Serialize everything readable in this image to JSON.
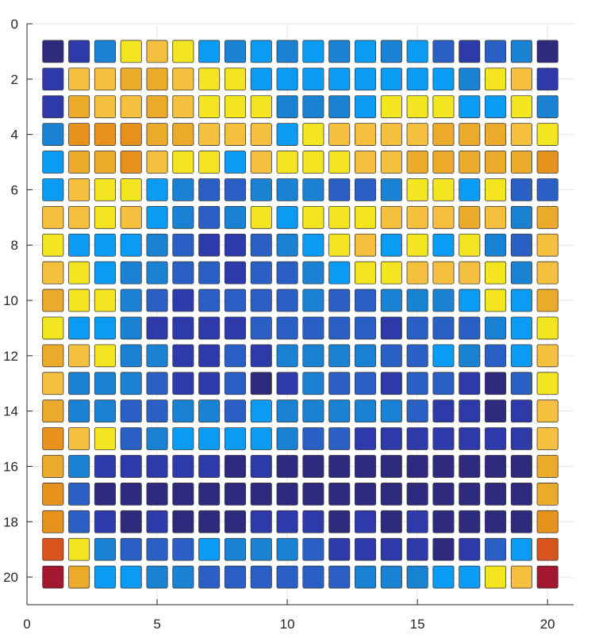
{
  "chart_data": {
    "type": "heatmap",
    "title": "",
    "xlabel": "",
    "ylabel": "",
    "xlim": [
      0,
      21
    ],
    "ylim": [
      21,
      0
    ],
    "y_direction": "reversed",
    "grid": true,
    "xticks": [
      0,
      5,
      10,
      15,
      20
    ],
    "yticks": [
      0,
      2,
      4,
      6,
      8,
      10,
      12,
      14,
      16,
      18,
      20
    ],
    "colormap": [
      "#2e2a7e",
      "#2f3aaa",
      "#2a60c5",
      "#1982d2",
      "#0a9bf5",
      "#3fae9c",
      "#f3e621",
      "#f6c03f",
      "#ecaa2a",
      "#e8921e",
      "#d9541c",
      "#a3182f"
    ],
    "value_range": [
      0,
      11
    ],
    "rows": [
      [
        0,
        1,
        3,
        6,
        7,
        6,
        4,
        3,
        4,
        3,
        4,
        3,
        4,
        3,
        4,
        2,
        1,
        2,
        3,
        0
      ],
      [
        1,
        7,
        7,
        8,
        8,
        7,
        6,
        6,
        4,
        4,
        4,
        4,
        4,
        4,
        4,
        4,
        3,
        6,
        7,
        1
      ],
      [
        1,
        8,
        7,
        7,
        8,
        7,
        6,
        6,
        6,
        3,
        3,
        3,
        4,
        6,
        6,
        6,
        4,
        4,
        6,
        3
      ],
      [
        3,
        9,
        9,
        9,
        8,
        8,
        7,
        7,
        7,
        4,
        6,
        7,
        7,
        7,
        7,
        8,
        8,
        8,
        7,
        6
      ],
      [
        4,
        8,
        8,
        9,
        7,
        6,
        6,
        4,
        7,
        6,
        6,
        6,
        7,
        7,
        8,
        8,
        8,
        8,
        8,
        9
      ],
      [
        4,
        7,
        6,
        6,
        4,
        3,
        2,
        2,
        3,
        3,
        3,
        2,
        2,
        3,
        6,
        6,
        4,
        6,
        2,
        2
      ],
      [
        7,
        7,
        6,
        7,
        4,
        3,
        2,
        3,
        6,
        4,
        6,
        6,
        6,
        7,
        7,
        7,
        8,
        7,
        3,
        8
      ],
      [
        6,
        4,
        4,
        4,
        3,
        2,
        1,
        1,
        2,
        3,
        4,
        6,
        7,
        4,
        6,
        4,
        6,
        3,
        2,
        7
      ],
      [
        7,
        6,
        4,
        3,
        3,
        2,
        2,
        1,
        2,
        2,
        3,
        4,
        6,
        6,
        7,
        7,
        7,
        6,
        3,
        7
      ],
      [
        8,
        6,
        6,
        3,
        2,
        1,
        2,
        2,
        2,
        2,
        3,
        2,
        2,
        3,
        3,
        3,
        4,
        6,
        4,
        8
      ],
      [
        6,
        4,
        4,
        3,
        1,
        1,
        1,
        1,
        2,
        2,
        2,
        2,
        2,
        1,
        2,
        2,
        2,
        3,
        4,
        6
      ],
      [
        8,
        7,
        6,
        3,
        3,
        1,
        1,
        2,
        1,
        3,
        3,
        3,
        3,
        2,
        2,
        4,
        3,
        2,
        4,
        7
      ],
      [
        7,
        3,
        3,
        3,
        2,
        1,
        1,
        2,
        0,
        1,
        3,
        2,
        2,
        1,
        2,
        2,
        1,
        0,
        2,
        6
      ],
      [
        8,
        3,
        3,
        2,
        2,
        3,
        3,
        2,
        4,
        3,
        3,
        3,
        3,
        3,
        2,
        1,
        1,
        0,
        1,
        7
      ],
      [
        9,
        7,
        6,
        2,
        3,
        4,
        4,
        4,
        4,
        3,
        2,
        2,
        1,
        1,
        1,
        1,
        1,
        1,
        1,
        7
      ],
      [
        8,
        3,
        1,
        1,
        1,
        1,
        1,
        0,
        1,
        0,
        0,
        0,
        0,
        0,
        0,
        0,
        0,
        0,
        0,
        8
      ],
      [
        9,
        2,
        0,
        0,
        0,
        0,
        0,
        0,
        0,
        0,
        0,
        0,
        0,
        0,
        0,
        0,
        0,
        0,
        0,
        8
      ],
      [
        9,
        2,
        1,
        0,
        1,
        0,
        0,
        0,
        1,
        1,
        1,
        0,
        1,
        0,
        1,
        0,
        0,
        0,
        0,
        9
      ],
      [
        10,
        6,
        3,
        2,
        2,
        2,
        4,
        3,
        3,
        3,
        2,
        1,
        1,
        1,
        1,
        0,
        1,
        2,
        4,
        10
      ],
      [
        11,
        8,
        4,
        4,
        3,
        3,
        2,
        2,
        2,
        2,
        2,
        2,
        3,
        3,
        3,
        4,
        4,
        6,
        7,
        11
      ]
    ]
  }
}
